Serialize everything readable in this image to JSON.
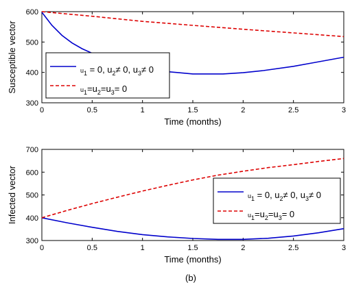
{
  "colors": {
    "solid_series": "#0000cc",
    "dashed_series": "#dd0000",
    "axes": "#000000",
    "background": "#ffffff"
  },
  "caption": "(b)",
  "chart_data": [
    {
      "type": "line",
      "title": "",
      "xlabel": "Time (months)",
      "ylabel": "Susceptible vector",
      "xlim": [
        0,
        3
      ],
      "ylim": [
        300,
        600
      ],
      "xticks": [
        "0",
        "0.5",
        "1",
        "1.5",
        "2",
        "2.5",
        "3"
      ],
      "yticks": [
        "300",
        "400",
        "500",
        "600"
      ],
      "grid": false,
      "legend_position": "center-left",
      "series": [
        {
          "name": "u1 = 0, u2≠ 0, u3≠ 0",
          "name_parts": [
            [
              "u",
              ""
            ],
            [
              "1",
              " = 0, u"
            ],
            [
              "2",
              "≠ 0, u"
            ],
            [
              "3",
              "≠ 0"
            ]
          ],
          "style": "solid",
          "x": [
            0,
            0.1,
            0.2,
            0.3,
            0.4,
            0.5,
            0.6,
            0.8,
            1.0,
            1.2,
            1.5,
            1.8,
            2.0,
            2.2,
            2.5,
            2.7,
            3.0
          ],
          "y": [
            598,
            555,
            522,
            497,
            478,
            463,
            452,
            430,
            414,
            404,
            395,
            395,
            399,
            406,
            420,
            432,
            450
          ]
        },
        {
          "name": "u1=u2=u3= 0",
          "name_parts": [
            [
              "u",
              ""
            ],
            [
              "1",
              "=u"
            ],
            [
              "2",
              "=u"
            ],
            [
              "3",
              "= 0"
            ]
          ],
          "style": "dashed",
          "x": [
            0,
            0.5,
            1.0,
            1.5,
            2.0,
            2.5,
            3.0
          ],
          "y": [
            600,
            585,
            568,
            555,
            542,
            530,
            518
          ]
        }
      ]
    },
    {
      "type": "line",
      "title": "",
      "xlabel": "Time (months)",
      "ylabel": "Infected vector",
      "xlim": [
        0,
        3
      ],
      "ylim": [
        300,
        700
      ],
      "xticks": [
        "0",
        "0.5",
        "1",
        "1.5",
        "2",
        "2.5",
        "3"
      ],
      "yticks": [
        "300",
        "400",
        "500",
        "600",
        "700"
      ],
      "grid": false,
      "legend_position": "right",
      "series": [
        {
          "name": "u1 = 0, u2≠ 0, u3≠ 0",
          "name_parts": [
            [
              "u",
              ""
            ],
            [
              "1",
              " = 0, u"
            ],
            [
              "2",
              "≠ 0, u"
            ],
            [
              "3",
              "≠ 0"
            ]
          ],
          "style": "solid",
          "x": [
            0,
            0.25,
            0.5,
            0.75,
            1.0,
            1.25,
            1.5,
            1.75,
            2.0,
            2.25,
            2.5,
            2.75,
            3.0
          ],
          "y": [
            400,
            378,
            358,
            340,
            326,
            316,
            309,
            305,
            305,
            310,
            320,
            334,
            352
          ]
        },
        {
          "name": "u1=u2=u3= 0",
          "name_parts": [
            [
              "u",
              ""
            ],
            [
              "1",
              "=u"
            ],
            [
              "2",
              "=u"
            ],
            [
              "3",
              "= 0"
            ]
          ],
          "style": "dashed",
          "x": [
            0,
            0.25,
            0.5,
            0.75,
            1.0,
            1.25,
            1.5,
            1.75,
            2.0,
            2.25,
            2.5,
            2.75,
            3.0
          ],
          "y": [
            400,
            432,
            462,
            490,
            517,
            542,
            566,
            587,
            604,
            620,
            633,
            647,
            660
          ]
        }
      ]
    }
  ]
}
